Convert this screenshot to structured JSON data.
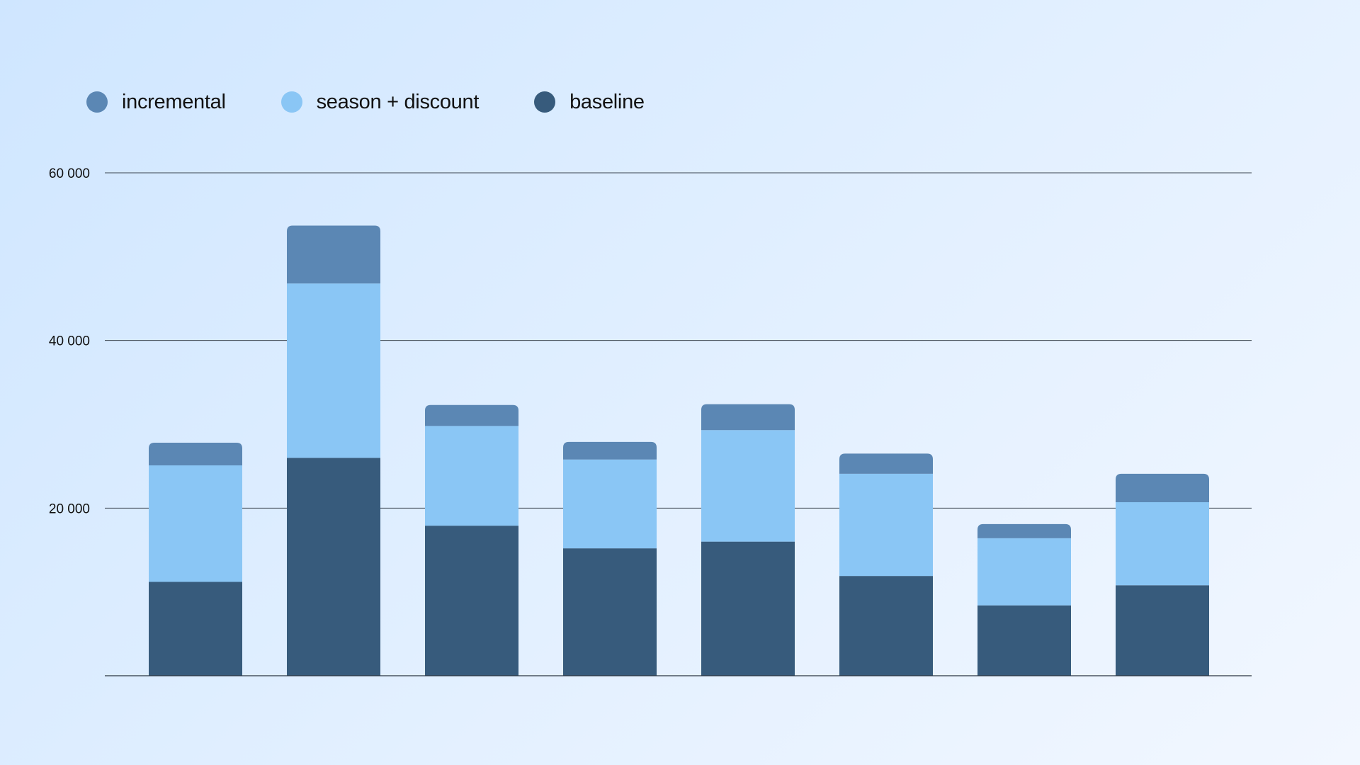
{
  "chart_data": {
    "type": "bar",
    "stacked": true,
    "categories": [
      "",
      "",
      "",
      "",
      "",
      "",
      "",
      ""
    ],
    "series": [
      {
        "name": "baseline",
        "color": "#375b7c",
        "values": [
          11200,
          26000,
          17900,
          15200,
          16000,
          11900,
          8400,
          10800
        ]
      },
      {
        "name": "season + discount",
        "color": "#8ac6f5",
        "values": [
          13900,
          20800,
          11900,
          10600,
          13300,
          12200,
          8000,
          9900
        ]
      },
      {
        "name": "incremental",
        "color": "#5b87b4",
        "values": [
          2700,
          6900,
          2500,
          2100,
          3100,
          2400,
          1700,
          3400
        ]
      }
    ],
    "legend_order": [
      "incremental",
      "season + discount",
      "baseline"
    ],
    "legend_position": "top-left",
    "yticks": [
      "20 000",
      "40 000",
      "60 000"
    ],
    "ytick_values": [
      20000,
      40000,
      60000
    ],
    "ylim": [
      0,
      60000
    ],
    "grid": true,
    "title": "",
    "xlabel": "",
    "ylabel": ""
  }
}
